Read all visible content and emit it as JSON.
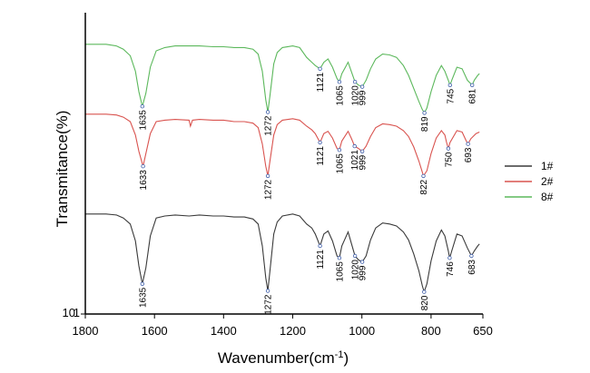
{
  "chart_data": {
    "type": "line",
    "title": "",
    "xlabel": "Wavenumber(cm",
    "xlabel_sup": "-1",
    "xlabel_suffix": ")",
    "ylabel": "Transmitance(%)",
    "xlim": [
      1800,
      650
    ],
    "x_reversed": true,
    "x_ticks": [
      "1800",
      "1600",
      "1400",
      "1200",
      "1000",
      "800",
      "650"
    ],
    "y_ticks": [
      "10",
      "1"
    ],
    "legend_position": "right",
    "grid": false,
    "series": [
      {
        "name": "1#",
        "color": "#3a3a3a",
        "x": [
          1800,
          1740,
          1710,
          1690,
          1670,
          1655,
          1645,
          1635,
          1625,
          1612,
          1595,
          1570,
          1540,
          1500,
          1470,
          1430,
          1400,
          1370,
          1340,
          1315,
          1300,
          1288,
          1278,
          1272,
          1266,
          1255,
          1245,
          1230,
          1200,
          1180,
          1160,
          1145,
          1135,
          1121,
          1110,
          1098,
          1085,
          1072,
          1065,
          1058,
          1040,
          1030,
          1020,
          1010,
          999,
          988,
          975,
          960,
          940,
          920,
          900,
          880,
          865,
          850,
          835,
          825,
          820,
          812,
          800,
          785,
          770,
          760,
          750,
          746,
          740,
          725,
          710,
          695,
          683,
          675,
          665,
          660
        ],
        "y": [
          0.82,
          0.82,
          0.81,
          0.78,
          0.72,
          0.55,
          0.3,
          0.12,
          0.28,
          0.6,
          0.78,
          0.8,
          0.81,
          0.8,
          0.81,
          0.8,
          0.8,
          0.79,
          0.79,
          0.77,
          0.72,
          0.5,
          0.18,
          0.05,
          0.25,
          0.62,
          0.74,
          0.8,
          0.82,
          0.8,
          0.72,
          0.68,
          0.62,
          0.5,
          0.62,
          0.65,
          0.55,
          0.4,
          0.38,
          0.5,
          0.64,
          0.52,
          0.4,
          0.36,
          0.34,
          0.4,
          0.56,
          0.68,
          0.73,
          0.72,
          0.7,
          0.64,
          0.56,
          0.42,
          0.25,
          0.1,
          0.04,
          0.12,
          0.35,
          0.55,
          0.66,
          0.6,
          0.45,
          0.38,
          0.45,
          0.62,
          0.6,
          0.48,
          0.4,
          0.45,
          0.5,
          0.52
        ]
      },
      {
        "name": "2#",
        "color": "#d9534f",
        "x": [
          1800,
          1740,
          1710,
          1690,
          1670,
          1655,
          1645,
          1633,
          1625,
          1612,
          1595,
          1570,
          1540,
          1500,
          1496,
          1490,
          1470,
          1430,
          1400,
          1370,
          1340,
          1315,
          1300,
          1288,
          1278,
          1272,
          1266,
          1255,
          1245,
          1230,
          1200,
          1180,
          1160,
          1145,
          1135,
          1121,
          1110,
          1098,
          1085,
          1072,
          1065,
          1058,
          1040,
          1030,
          1021,
          1010,
          999,
          988,
          975,
          960,
          940,
          920,
          900,
          880,
          865,
          850,
          835,
          825,
          822,
          812,
          800,
          785,
          770,
          760,
          755,
          750,
          745,
          725,
          710,
          698,
          693,
          685,
          670,
          660
        ],
        "y": [
          0.88,
          0.88,
          0.87,
          0.84,
          0.78,
          0.6,
          0.38,
          0.18,
          0.35,
          0.62,
          0.78,
          0.8,
          0.81,
          0.8,
          0.72,
          0.8,
          0.81,
          0.8,
          0.8,
          0.78,
          0.78,
          0.76,
          0.7,
          0.48,
          0.18,
          0.05,
          0.25,
          0.6,
          0.74,
          0.8,
          0.82,
          0.8,
          0.72,
          0.67,
          0.62,
          0.5,
          0.62,
          0.65,
          0.56,
          0.42,
          0.4,
          0.52,
          0.65,
          0.55,
          0.45,
          0.42,
          0.38,
          0.45,
          0.58,
          0.7,
          0.75,
          0.74,
          0.72,
          0.66,
          0.58,
          0.44,
          0.25,
          0.1,
          0.05,
          0.12,
          0.35,
          0.56,
          0.66,
          0.6,
          0.5,
          0.42,
          0.5,
          0.66,
          0.64,
          0.52,
          0.48,
          0.55,
          0.62,
          0.64
        ]
      },
      {
        "name": "8#",
        "color": "#5cb85c",
        "x": [
          1800,
          1740,
          1710,
          1690,
          1670,
          1655,
          1645,
          1635,
          1625,
          1612,
          1595,
          1570,
          1540,
          1500,
          1470,
          1430,
          1400,
          1370,
          1340,
          1315,
          1300,
          1288,
          1278,
          1272,
          1266,
          1255,
          1245,
          1230,
          1200,
          1180,
          1160,
          1145,
          1135,
          1121,
          1110,
          1098,
          1085,
          1072,
          1065,
          1058,
          1040,
          1030,
          1020,
          1010,
          999,
          988,
          975,
          960,
          940,
          920,
          900,
          880,
          865,
          850,
          835,
          825,
          819,
          812,
          800,
          785,
          770,
          760,
          750,
          745,
          740,
          725,
          710,
          695,
          681,
          675,
          665,
          660
        ],
        "y": [
          0.88,
          0.88,
          0.86,
          0.82,
          0.74,
          0.55,
          0.3,
          0.12,
          0.28,
          0.6,
          0.8,
          0.84,
          0.86,
          0.86,
          0.86,
          0.85,
          0.85,
          0.84,
          0.84,
          0.82,
          0.76,
          0.55,
          0.2,
          0.05,
          0.25,
          0.64,
          0.78,
          0.84,
          0.86,
          0.84,
          0.72,
          0.66,
          0.62,
          0.58,
          0.66,
          0.7,
          0.6,
          0.46,
          0.42,
          0.52,
          0.66,
          0.54,
          0.42,
          0.38,
          0.36,
          0.44,
          0.58,
          0.7,
          0.76,
          0.75,
          0.72,
          0.62,
          0.5,
          0.34,
          0.18,
          0.08,
          0.04,
          0.1,
          0.3,
          0.5,
          0.62,
          0.55,
          0.44,
          0.38,
          0.44,
          0.6,
          0.58,
          0.44,
          0.38,
          0.44,
          0.5,
          0.52
        ]
      }
    ],
    "peak_labels": [
      {
        "series": "8#",
        "x": 1635,
        "text": "1635"
      },
      {
        "series": "8#",
        "x": 1272,
        "text": "1272"
      },
      {
        "series": "8#",
        "x": 1121,
        "text": "1121"
      },
      {
        "series": "8#",
        "x": 1065,
        "text": "1065"
      },
      {
        "series": "8#",
        "x": 1020,
        "text": "1020"
      },
      {
        "series": "8#",
        "x": 999,
        "text": "999"
      },
      {
        "series": "8#",
        "x": 819,
        "text": "819"
      },
      {
        "series": "8#",
        "x": 745,
        "text": "745"
      },
      {
        "series": "8#",
        "x": 681,
        "text": "681"
      },
      {
        "series": "2#",
        "x": 1633,
        "text": "1633"
      },
      {
        "series": "2#",
        "x": 1272,
        "text": "1272"
      },
      {
        "series": "2#",
        "x": 1121,
        "text": "1121"
      },
      {
        "series": "2#",
        "x": 1065,
        "text": "1065"
      },
      {
        "series": "2#",
        "x": 1021,
        "text": "1021"
      },
      {
        "series": "2#",
        "x": 999,
        "text": "999"
      },
      {
        "series": "2#",
        "x": 822,
        "text": "822"
      },
      {
        "series": "2#",
        "x": 750,
        "text": "750"
      },
      {
        "series": "2#",
        "x": 693,
        "text": "693"
      },
      {
        "series": "1#",
        "x": 1635,
        "text": "1635"
      },
      {
        "series": "1#",
        "x": 1272,
        "text": "1272"
      },
      {
        "series": "1#",
        "x": 1121,
        "text": "1121"
      },
      {
        "series": "1#",
        "x": 1065,
        "text": "1065"
      },
      {
        "series": "1#",
        "x": 1020,
        "text": "1020"
      },
      {
        "series": "1#",
        "x": 999,
        "text": "999"
      },
      {
        "series": "1#",
        "x": 820,
        "text": "820"
      },
      {
        "series": "1#",
        "x": 746,
        "text": "746"
      },
      {
        "series": "1#",
        "x": 683,
        "text": "683"
      }
    ]
  }
}
